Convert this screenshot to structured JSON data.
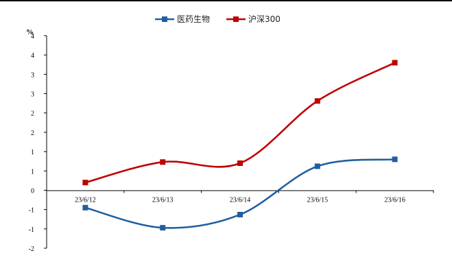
{
  "chart_data": {
    "type": "line",
    "categories": [
      "23/6/12",
      "23/6/13",
      "23/6/14",
      "23/6/15",
      "23/6/16"
    ],
    "series": [
      {
        "name": "医药生物",
        "color": "#1f5fa0",
        "marker": "square",
        "values": [
          -0.45,
          -0.97,
          -0.63,
          0.62,
          0.8
        ]
      },
      {
        "name": "沪深300",
        "color": "#c00000",
        "marker": "square",
        "values": [
          0.2,
          0.73,
          0.7,
          2.31,
          3.3
        ]
      }
    ],
    "y_unit": "%",
    "y_tick_labels": [
      "-2",
      "-1",
      "-1",
      "0",
      "1",
      "1",
      "2",
      "2",
      "3",
      "3",
      "4",
      "4"
    ],
    "ylim": [
      -1.5,
      4.0
    ],
    "y_tick_step": 0.5,
    "grid": false,
    "legend_position": "top-center",
    "smooth": true
  }
}
